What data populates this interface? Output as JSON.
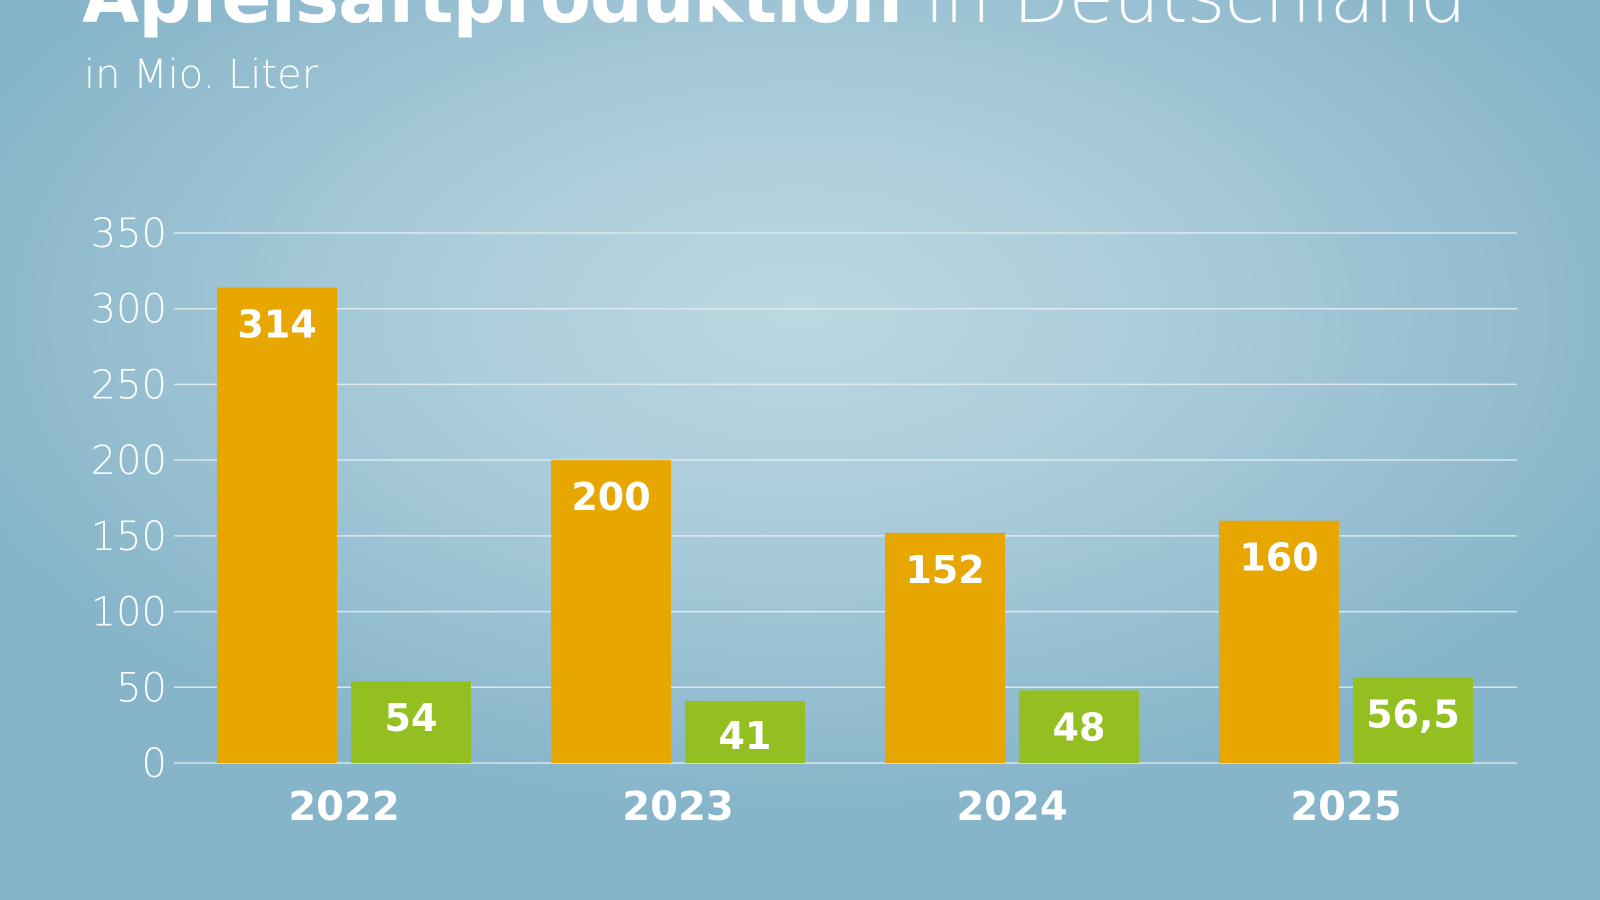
{
  "chart_data": {
    "type": "bar",
    "title_bold": "Apfelsaftproduktion",
    "title_rest": "in Deutschland",
    "subtitle": "in Mio. Liter",
    "categories": [
      "2022",
      "2023",
      "2024",
      "2025"
    ],
    "series": [
      {
        "values": [
          314,
          200,
          152,
          160
        ],
        "labels": [
          "314",
          "200",
          "152",
          "160"
        ],
        "color": "#e8a600"
      },
      {
        "values": [
          54,
          41,
          48,
          56.5
        ],
        "labels": [
          "54",
          "41",
          "48",
          "56,5"
        ],
        "color": "#93c020"
      }
    ],
    "ylim": [
      0,
      350
    ],
    "yticks": [
      "0",
      "50",
      "100",
      "150",
      "200",
      "250",
      "300",
      "350"
    ],
    "grid": true,
    "xlabel": "",
    "ylabel": ""
  }
}
